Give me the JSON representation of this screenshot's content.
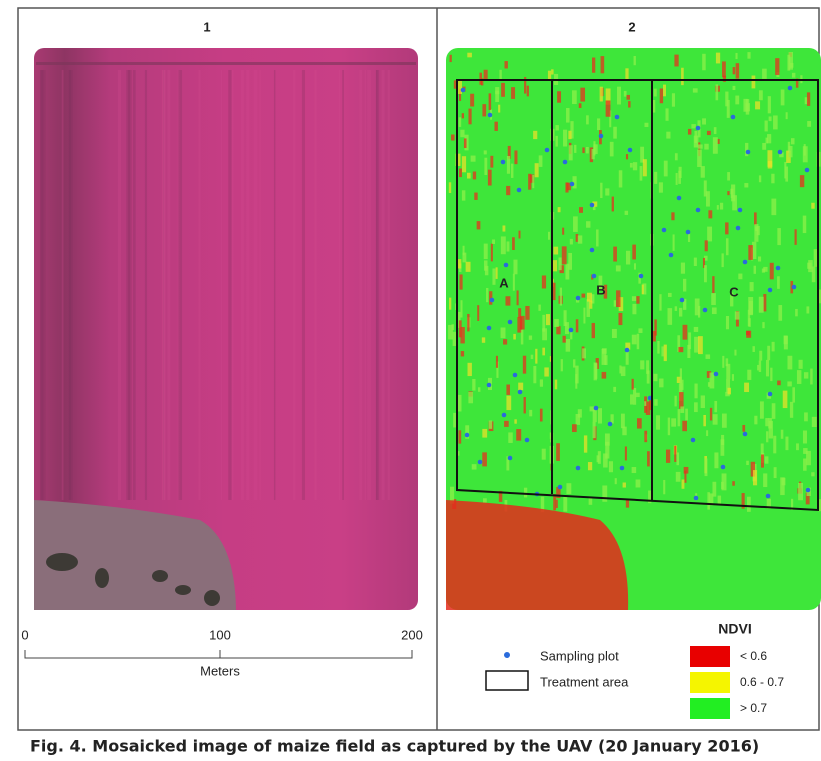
{
  "figure": {
    "panels": [
      {
        "title": "1"
      },
      {
        "title": "2"
      }
    ],
    "scale_bar": {
      "ticks": [
        "0",
        "100",
        "200"
      ],
      "label": "Meters"
    },
    "treatment_labels": [
      "A",
      "B",
      "C"
    ],
    "legend": {
      "sampling_plot": "Sampling plot",
      "treatment_area": "Treatment area",
      "ndvi_title": "NDVI",
      "ndvi_classes": [
        "< 0.6",
        "0.6 - 0.7",
        "> 0.7"
      ]
    },
    "caption": "Fig. 4. Mosaicked image of maize field as captured by the UAV (20 January 2016)"
  }
}
